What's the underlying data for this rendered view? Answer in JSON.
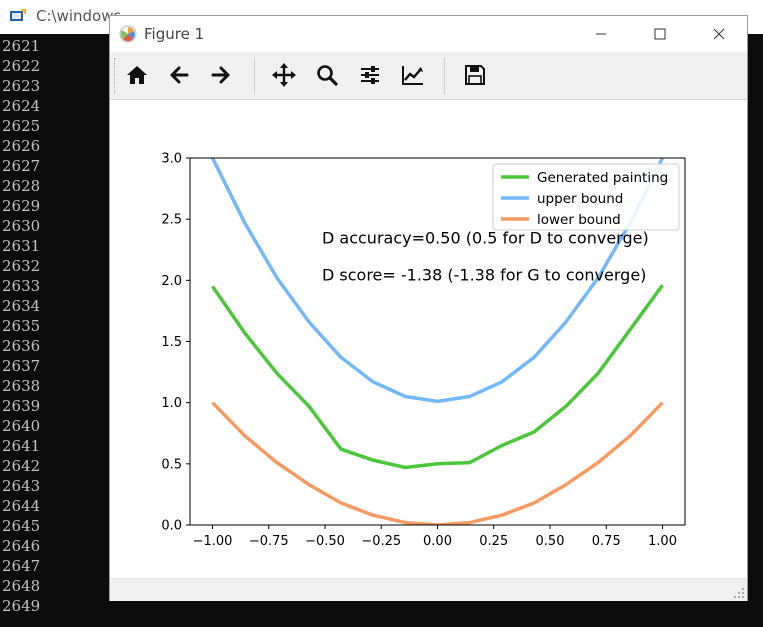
{
  "console": {
    "title": "C:\\windows",
    "lines": [
      "2621",
      "2622",
      "2623",
      "2624",
      "2625",
      "2626",
      "2627",
      "2628",
      "2629",
      "2630",
      "2631",
      "2632",
      "2633",
      "2634",
      "2635",
      "2636",
      "2637",
      "2638",
      "2639",
      "2640",
      "2641",
      "2642",
      "2643",
      "2644",
      "2645",
      "2646",
      "2647",
      "2648",
      "2649"
    ]
  },
  "figure": {
    "title": "Figure 1",
    "status": ""
  },
  "toolbar": {
    "items": [
      "home-icon",
      "back-arrow-icon",
      "forward-arrow-icon",
      "pan-icon",
      "zoom-icon",
      "subplots-icon",
      "edit-axis-icon",
      "save-icon"
    ]
  },
  "chart_data": {
    "type": "line",
    "xlim": [
      -1.1,
      1.1
    ],
    "ylim": [
      0.0,
      3.0
    ],
    "xticks": [
      -1.0,
      -0.75,
      -0.5,
      -0.25,
      0.0,
      0.25,
      0.5,
      0.75,
      1.0
    ],
    "xtick_labels": [
      "−1.00",
      "−0.75",
      "−0.50",
      "−0.25",
      "0.00",
      "0.25",
      "0.50",
      "0.75",
      "1.00"
    ],
    "yticks": [
      0.0,
      0.5,
      1.0,
      1.5,
      2.0,
      2.5,
      3.0
    ],
    "ytick_labels": [
      "0.0",
      "0.5",
      "1.0",
      "1.5",
      "2.0",
      "2.5",
      "3.0"
    ],
    "x": [
      -1.0,
      -0.857,
      -0.714,
      -0.571,
      -0.429,
      -0.286,
      -0.143,
      0.0,
      0.143,
      0.286,
      0.429,
      0.571,
      0.714,
      0.857,
      1.0
    ],
    "series": [
      {
        "name": "Generated painting",
        "color": "#4cc63a",
        "values": [
          1.95,
          1.57,
          1.24,
          0.97,
          0.62,
          0.53,
          0.47,
          0.5,
          0.51,
          0.65,
          0.76,
          0.97,
          1.24,
          1.6,
          1.96
        ]
      },
      {
        "name": "upper bound",
        "color": "#74b8f8",
        "values": [
          3.0,
          2.47,
          2.02,
          1.66,
          1.37,
          1.17,
          1.05,
          1.01,
          1.05,
          1.17,
          1.37,
          1.66,
          2.02,
          2.47,
          3.0
        ]
      },
      {
        "name": "lower bound",
        "color": "#f79a61",
        "values": [
          1.0,
          0.73,
          0.51,
          0.33,
          0.18,
          0.08,
          0.02,
          0.0,
          0.02,
          0.08,
          0.18,
          0.33,
          0.51,
          0.73,
          1.0
        ]
      }
    ],
    "legend_position": "upper-right",
    "annotations": [
      {
        "text": "D accuracy=0.50 (0.5 for D to converge)",
        "x": -0.5,
        "y": 2.3
      },
      {
        "text": "D score= -1.38 (-1.38 for G to converge)",
        "x": -0.5,
        "y": 2.0
      }
    ],
    "grid": false
  }
}
